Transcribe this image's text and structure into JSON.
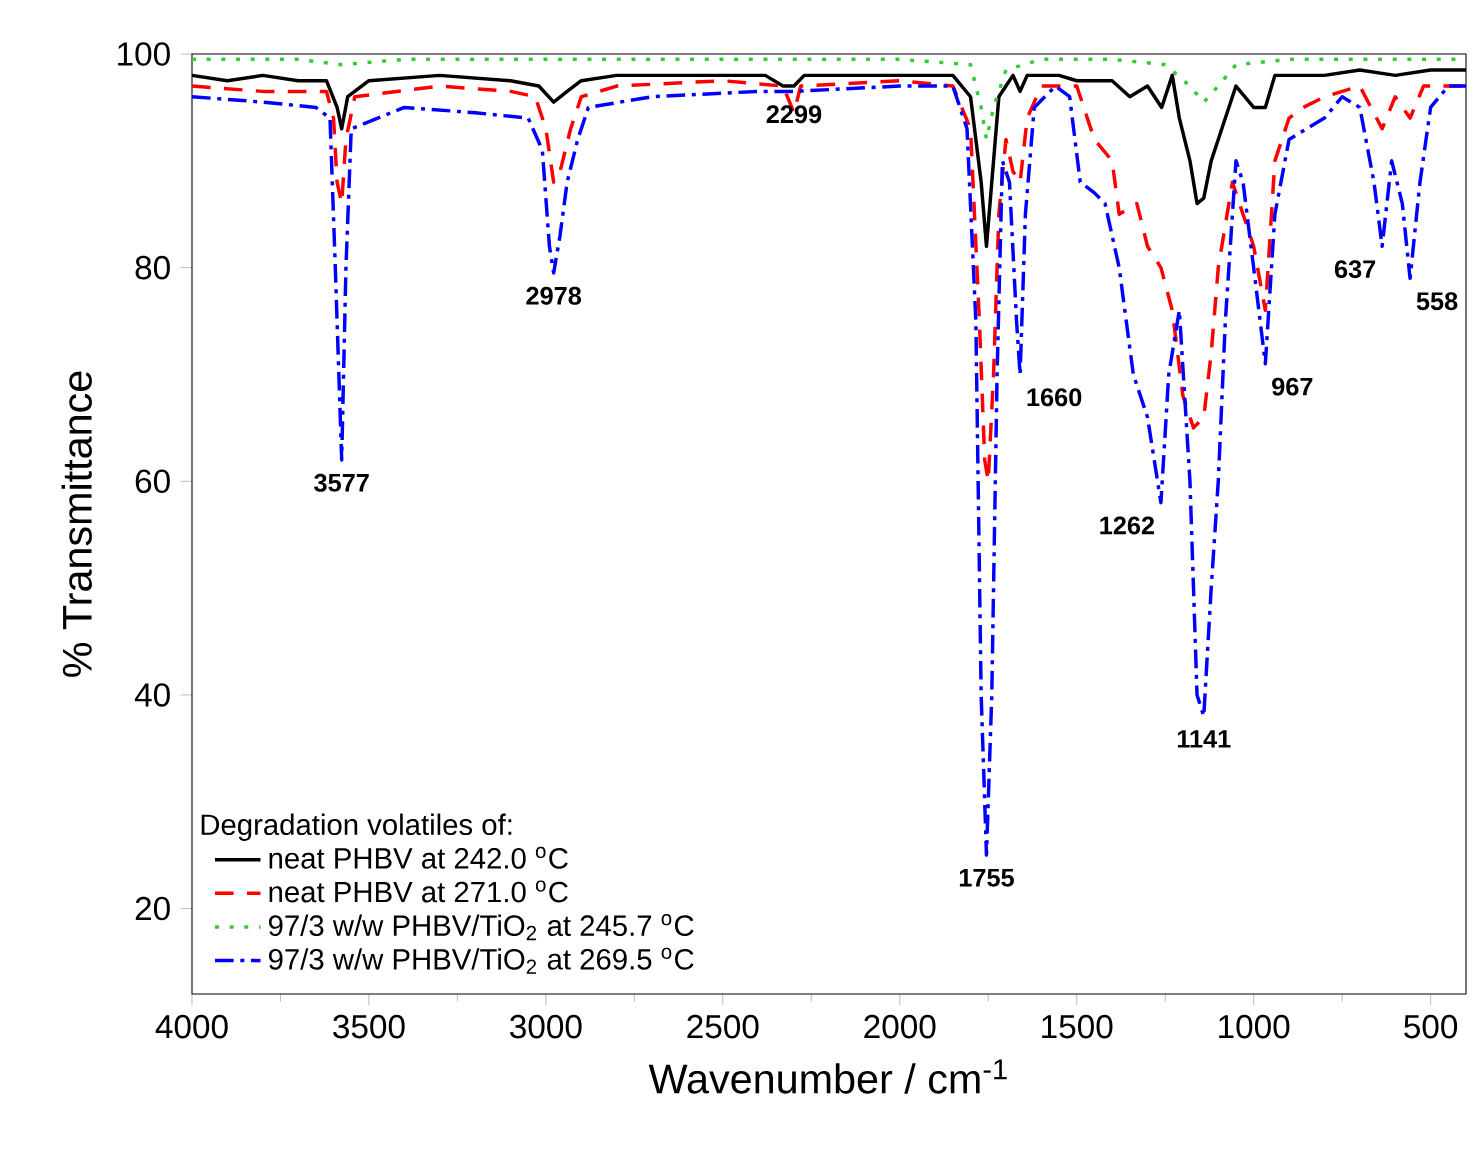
{
  "chart_data": {
    "type": "line",
    "xlabel": "Wavenumber / cm$^{-1}$",
    "ylabel": "% Transmittance",
    "legend_title": "Degradation volatiles of:",
    "legend": "bottom left",
    "grid": false,
    "xlim": [
      4000,
      400
    ],
    "xticks": [
      4000,
      3500,
      3000,
      2500,
      2000,
      1500,
      1000,
      500
    ],
    "ylim": [
      12,
      100
    ],
    "yticks": [
      20,
      40,
      60,
      80,
      100
    ],
    "series": [
      {
        "name": "neat PHBV at 242.0 $^{o}$C",
        "color": "#000000",
        "line_style": "solid",
        "x": [
          4000,
          3900,
          3800,
          3700,
          3620,
          3590,
          3577,
          3560,
          3500,
          3300,
          3100,
          3020,
          2978,
          2940,
          2900,
          2800,
          2500,
          2380,
          2330,
          2299,
          2270,
          2000,
          1850,
          1800,
          1770,
          1755,
          1740,
          1720,
          1700,
          1680,
          1660,
          1640,
          1550,
          1500,
          1400,
          1350,
          1300,
          1260,
          1230,
          1210,
          1180,
          1160,
          1141,
          1120,
          1100,
          1050,
          1000,
          967,
          940,
          800,
          700,
          600,
          500,
          400
        ],
        "values": [
          98,
          97.5,
          98,
          97.5,
          97.5,
          95,
          93,
          96,
          97.5,
          98,
          97.5,
          97,
          95.5,
          96.5,
          97.5,
          98,
          98,
          98,
          97,
          97,
          98,
          98,
          98,
          96,
          88,
          82,
          88,
          96,
          97,
          98,
          96.5,
          98,
          98,
          97.5,
          97.5,
          96,
          97,
          95,
          98,
          94,
          90,
          86,
          86.5,
          90,
          92,
          97,
          95,
          95,
          98,
          98,
          98.5,
          98,
          98.5,
          98.5
        ]
      },
      {
        "name": "neat PHBV at 271.0 $^{o}$C",
        "color": "#ff0000",
        "line_style": "dashed",
        "x": [
          4000,
          3800,
          3620,
          3600,
          3590,
          3577,
          3565,
          3540,
          3300,
          3100,
          3030,
          3000,
          2978,
          2960,
          2930,
          2900,
          2800,
          2500,
          2330,
          2299,
          2280,
          2000,
          1850,
          1800,
          1775,
          1760,
          1750,
          1735,
          1720,
          1700,
          1680,
          1660,
          1640,
          1600,
          1500,
          1450,
          1400,
          1380,
          1330,
          1300,
          1262,
          1230,
          1200,
          1170,
          1141,
          1120,
          1100,
          1060,
          1040,
          1000,
          967,
          940,
          900,
          860,
          800,
          700,
          637,
          600,
          558,
          520,
          400
        ],
        "values": [
          97,
          96.5,
          96.5,
          94,
          88,
          86,
          92,
          96,
          97,
          96.5,
          96,
          93,
          88,
          89,
          93,
          96,
          97,
          97.5,
          97,
          94.5,
          97,
          97.5,
          97,
          93,
          75,
          62,
          60,
          70,
          85,
          92,
          89,
          88,
          94,
          97,
          97,
          92,
          90,
          85,
          86,
          82,
          80,
          76,
          68,
          65,
          66,
          72,
          80,
          88,
          86,
          82,
          76,
          90,
          94,
          95,
          96,
          97,
          93,
          96,
          94,
          97,
          97
        ]
      },
      {
        "name": "97/3 w/w PHBV/TiO$_{2}$ at 245.7 $^{o}$C",
        "color": "#33cc33",
        "line_style": "dotted",
        "x": [
          4000,
          3700,
          3577,
          3400,
          3000,
          2500,
          2000,
          1800,
          1770,
          1755,
          1735,
          1700,
          1600,
          1400,
          1250,
          1180,
          1141,
          1100,
          1050,
          900,
          600,
          400
        ],
        "values": [
          99.5,
          99.5,
          99,
          99.5,
          99.5,
          99.5,
          99.5,
          99,
          95,
          92,
          95,
          98.5,
          99.5,
          99.5,
          99,
          97,
          95.5,
          97,
          99,
          99.5,
          99.5,
          99.5
        ]
      },
      {
        "name": "97/3 w/w PHBV/TiO$_{2}$ at 269.5 $^{o}$C",
        "color": "#0000ff",
        "line_style": "dashdotted",
        "x": [
          4000,
          3800,
          3650,
          3610,
          3595,
          3577,
          3565,
          3550,
          3400,
          3200,
          3050,
          3010,
          2990,
          2978,
          2960,
          2940,
          2910,
          2880,
          2700,
          2400,
          2299,
          2000,
          1850,
          1810,
          1785,
          1770,
          1755,
          1740,
          1725,
          1710,
          1690,
          1670,
          1660,
          1645,
          1620,
          1560,
          1520,
          1490,
          1450,
          1420,
          1380,
          1340,
          1300,
          1262,
          1240,
          1210,
          1180,
          1160,
          1141,
          1120,
          1100,
          1080,
          1050,
          1030,
          1000,
          967,
          940,
          900,
          850,
          800,
          750,
          700,
          660,
          637,
          610,
          580,
          558,
          530,
          500,
          450,
          400
        ],
        "values": [
          96,
          95.5,
          95,
          94,
          80,
          62,
          80,
          93,
          95,
          94.5,
          94,
          91,
          82,
          79.5,
          83,
          88,
          92,
          95,
          96,
          96.5,
          96.5,
          97,
          97,
          93,
          75,
          40,
          25,
          40,
          70,
          90,
          88,
          75,
          70,
          85,
          95,
          97,
          96,
          88,
          87,
          86,
          80,
          70,
          66,
          58,
          70,
          76,
          60,
          40,
          38,
          50,
          60,
          75,
          90,
          88,
          80,
          71,
          85,
          92,
          93,
          94,
          96,
          95,
          88,
          82,
          90,
          86,
          79,
          88,
          95,
          97,
          97
        ]
      }
    ],
    "annotations": [
      {
        "text": "3577",
        "x": 3577,
        "y": 62
      },
      {
        "text": "2978",
        "x": 2978,
        "y": 79.5
      },
      {
        "text": "2299",
        "x": 2299,
        "y": 96.5
      },
      {
        "text": "1755",
        "x": 1755,
        "y": 25
      },
      {
        "text": "1660",
        "x": 1660,
        "y": 70
      },
      {
        "text": "1262",
        "x": 1262,
        "y": 58
      },
      {
        "text": "1141",
        "x": 1141,
        "y": 38
      },
      {
        "text": "967",
        "x": 967,
        "y": 71
      },
      {
        "text": "637",
        "x": 637,
        "y": 82
      },
      {
        "text": "558",
        "x": 558,
        "y": 79
      }
    ]
  }
}
